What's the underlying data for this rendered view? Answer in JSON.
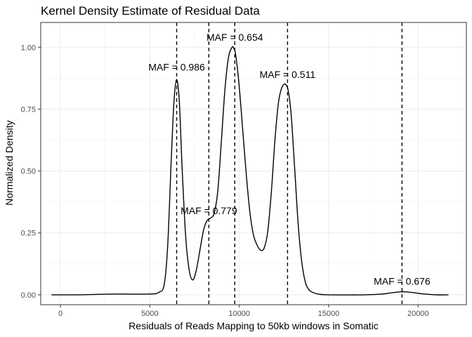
{
  "chart_data": {
    "type": "line",
    "title": "Kernel Density Estimate of Residual Data",
    "xlabel": "Residuals of Reads Mapping to 50kb windows in Somatic",
    "ylabel": "Normalized Density",
    "xlim": [
      -1100,
      22700
    ],
    "ylim": [
      -0.04,
      1.1
    ],
    "xticks": [
      0,
      5000,
      10000,
      15000,
      20000
    ],
    "xtick_labels": [
      "0",
      "5000",
      "10000",
      "15000",
      "20000"
    ],
    "yticks": [
      0,
      0.25,
      0.5,
      0.75,
      1.0
    ],
    "ytick_labels": [
      "0.00",
      "0.25",
      "0.50",
      "0.75",
      "1.00"
    ],
    "grid": true,
    "series": [
      {
        "x": [
          -500,
          1000,
          3000,
          5000,
          5500,
          5800,
          6000,
          6200,
          6350,
          6500,
          6650,
          6800,
          7000,
          7200,
          7400,
          7600,
          7800,
          8000,
          8200,
          8400,
          8600,
          8800,
          9000,
          9200,
          9400,
          9600,
          9700,
          9800,
          10000,
          10200,
          10400,
          10600,
          10800,
          11000,
          11200,
          11400,
          11600,
          11800,
          12000,
          12200,
          12400,
          12600,
          12750,
          12900,
          13100,
          13300,
          13500,
          13700,
          13900,
          14100,
          14400,
          15000,
          17000,
          18000,
          18500,
          19000,
          19300,
          19700,
          20200,
          21000,
          21700
        ],
        "y": [
          0.0,
          0.0,
          0.003,
          0.003,
          0.01,
          0.04,
          0.2,
          0.55,
          0.78,
          0.87,
          0.78,
          0.52,
          0.24,
          0.1,
          0.06,
          0.1,
          0.18,
          0.26,
          0.3,
          0.31,
          0.33,
          0.42,
          0.62,
          0.83,
          0.96,
          1.0,
          0.995,
          0.97,
          0.84,
          0.66,
          0.48,
          0.33,
          0.24,
          0.2,
          0.18,
          0.19,
          0.26,
          0.42,
          0.63,
          0.78,
          0.84,
          0.85,
          0.82,
          0.73,
          0.51,
          0.28,
          0.13,
          0.05,
          0.02,
          0.01,
          0.003,
          0.0,
          0.0,
          0.003,
          0.008,
          0.012,
          0.012,
          0.009,
          0.004,
          0.0,
          0.0
        ]
      }
    ],
    "vlines": [
      {
        "x": 6500,
        "label": "MAF = 0.986",
        "label_y": 0.92
      },
      {
        "x": 8300,
        "label": "MAF = 0.779",
        "label_y": 0.34
      },
      {
        "x": 9750,
        "label": "MAF = 0.654",
        "label_y": 1.04
      },
      {
        "x": 12700,
        "label": "MAF = 0.511",
        "label_y": 0.89
      },
      {
        "x": 19100,
        "label": "MAF = 0.676",
        "label_y": 0.055
      }
    ]
  }
}
